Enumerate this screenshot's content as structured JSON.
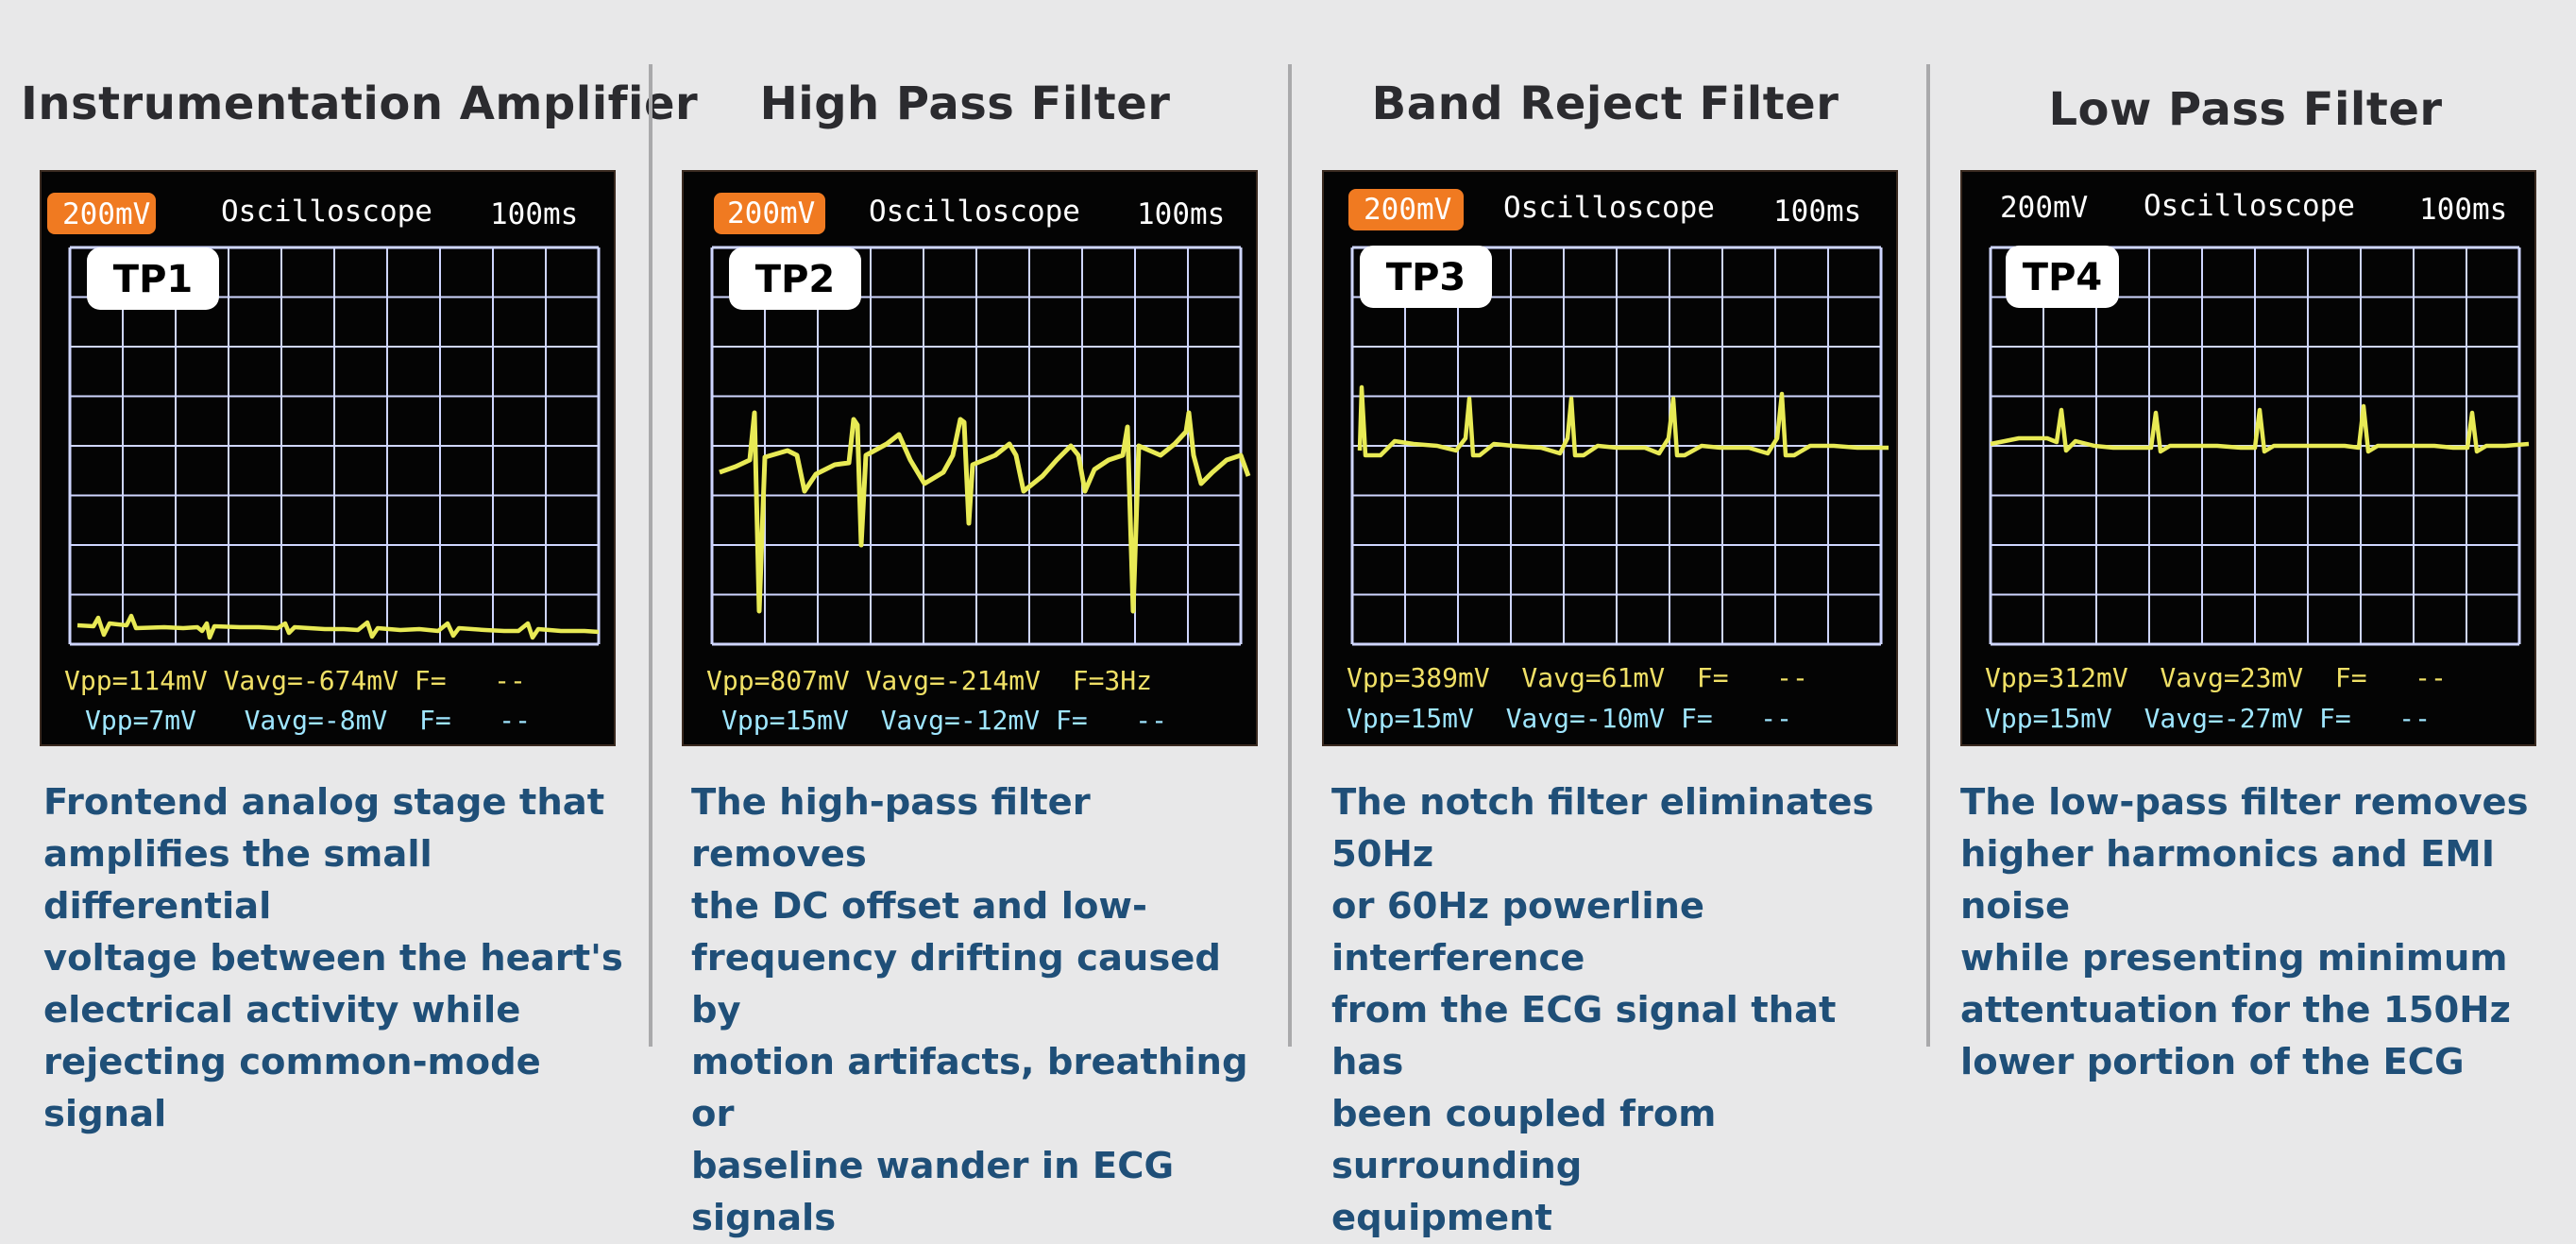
{
  "panels": [
    {
      "title": "Instrumentation Amplifier",
      "test_point": "TP1",
      "scope": {
        "volts_div": "200mV",
        "name": "Oscilloscope",
        "time_div": "100ms",
        "volts_div_highlighted": true,
        "ch1": "Vpp=114mV Vavg=-674mV F=   --",
        "ch2": "Vpp=7mV   Vavg=-8mV  F=   --"
      },
      "description": "Frontend analog stage that\namplifies the small differential\nvoltage between the heart's\nelectrical activity while\nrejecting common-mode signal"
    },
    {
      "title": "High Pass Filter",
      "test_point": "TP2",
      "scope": {
        "volts_div": "200mV",
        "name": "Oscilloscope",
        "time_div": "100ms",
        "volts_div_highlighted": true,
        "ch1": "Vpp=807mV Vavg=-214mV  F=3Hz",
        "ch2": "Vpp=15mV  Vavg=-12mV F=   --"
      },
      "description": "The high-pass filter removes\nthe DC offset and low-\nfrequency drifting caused by\nmotion artifacts, breathing or\nbaseline wander in ECG signals"
    },
    {
      "title": "Band Reject Filter",
      "test_point": "TP3",
      "scope": {
        "volts_div": "200mV",
        "name": "Oscilloscope",
        "time_div": "100ms",
        "volts_div_highlighted": true,
        "ch1": "Vpp=389mV  Vavg=61mV  F=   --",
        "ch2": "Vpp=15mV  Vavg=-10mV F=   --"
      },
      "description": "The notch filter eliminates 50Hz\nor 60Hz powerline interference\nfrom the ECG signal that has\nbeen coupled from surrounding\nequipment"
    },
    {
      "title": "Low Pass Filter",
      "test_point": "TP4",
      "scope": {
        "volts_div": "200mV",
        "name": "Oscilloscope",
        "time_div": "100ms",
        "volts_div_highlighted": false,
        "ch1": "Vpp=312mV  Vavg=23mV  F=   --",
        "ch2": "Vpp=15mV  Vavg=-27mV F=   --"
      },
      "description": "The low-pass filter removes\nhigher harmonics and EMI noise\nwhile presenting minimum\nattentuation for the 150Hz\nlower portion of the ECG"
    }
  ],
  "colors": {
    "trace": "#e8ea55",
    "grid": "#cfd6ff",
    "ch1_text": "#f0e066",
    "ch2_text": "#9fe6ff",
    "highlight": "#f07a21",
    "description": "#1f4f78"
  }
}
